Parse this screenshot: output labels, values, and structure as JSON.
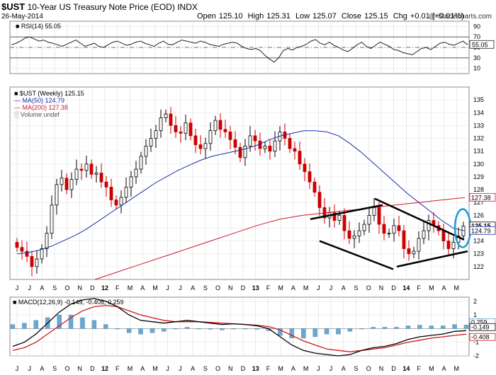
{
  "header": {
    "symbol": "$UST",
    "name": "10-Year US Treasury Note Price (EOD)",
    "exchange": "INDX",
    "date": "26-May-2014",
    "credit": "@ StockCharts.com",
    "open_label": "Open",
    "open": "125.10",
    "high_label": "High",
    "high": "125.31",
    "low_label": "Low",
    "low": "125.07",
    "close_label": "Close",
    "close": "125.15",
    "chg_label": "Chg",
    "chg": "+0.01 (+0.01%)"
  },
  "colors": {
    "ma50": "#1a2ea8",
    "ma200": "#cc1b2e",
    "macd": "#000000",
    "signal": "#d01818",
    "hist": "#6aa8cf",
    "annotation": "#1e9ad6"
  },
  "chart_data": [
    {
      "type": "line",
      "title": "RSI(14) 55.05",
      "ylim": [
        0,
        100
      ],
      "yticks": [
        90,
        70,
        50,
        30,
        10
      ],
      "reference_lines": [
        70,
        50,
        30
      ],
      "current_value": "55.05",
      "series": [
        {
          "name": "RSI(14)",
          "values": [
            55,
            58,
            62,
            68,
            70,
            66,
            62,
            64,
            60,
            58,
            55,
            52,
            56,
            60,
            64,
            58,
            52,
            55,
            58,
            52,
            50,
            55,
            60,
            62,
            58,
            54,
            56,
            60,
            62,
            58,
            55,
            52,
            58,
            62,
            56,
            55,
            60,
            64,
            62,
            60,
            58,
            62,
            60,
            56,
            54,
            52,
            56,
            58,
            60,
            58,
            52,
            48,
            46,
            48,
            44,
            35,
            28,
            22,
            30,
            44,
            48,
            45,
            50,
            52,
            56,
            62,
            65,
            58,
            55,
            60,
            54,
            50,
            45,
            42,
            48,
            55,
            60,
            52,
            48,
            54,
            60,
            56,
            52,
            46,
            44,
            40,
            38,
            36,
            42,
            48,
            50,
            46,
            52,
            58,
            60,
            56,
            54,
            58,
            62,
            55
          ]
        }
      ]
    },
    {
      "type": "candlestick",
      "title": "$UST (Weekly) 125.15",
      "legend": [
        "$UST (Weekly) 125.15",
        "MA(50) 124.79",
        "MA(200) 127.38",
        "Volume undef"
      ],
      "ylim": [
        121,
        136
      ],
      "yticks": [
        135,
        134,
        133,
        132,
        131,
        130,
        129,
        128,
        127,
        126,
        125,
        124,
        123,
        122
      ],
      "x_tick_labels": [
        "J",
        "J",
        "A",
        "S",
        "O",
        "N",
        "D",
        "12",
        "F",
        "M",
        "A",
        "M",
        "J",
        "J",
        "A",
        "S",
        "O",
        "N",
        "D",
        "13",
        "F",
        "M",
        "A",
        "M",
        "J",
        "J",
        "A",
        "S",
        "O",
        "N",
        "D",
        "14",
        "F",
        "M",
        "A",
        "M"
      ],
      "price_tags": [
        "127.38",
        "125.15",
        "124.79"
      ],
      "series": [
        {
          "name": "$UST (Weekly)",
          "values": [
            123.5,
            123.2,
            122.8,
            122.0,
            122.6,
            123.4,
            124.6,
            126.8,
            128.4,
            128.9,
            128.0,
            128.8,
            129.6,
            129.5,
            130.0,
            129.2,
            129.3,
            128.6,
            128.2,
            127.2,
            126.8,
            127.4,
            128.2,
            129.0,
            129.6,
            130.6,
            131.4,
            132.0,
            132.6,
            133.6,
            133.9,
            133.0,
            132.5,
            132.4,
            133.2,
            132.2,
            131.5,
            131.2,
            131.6,
            132.6,
            133.4,
            132.7,
            132.5,
            131.9,
            131.3,
            130.5,
            131.4,
            132.2,
            131.8,
            131.2,
            131.4,
            131.0,
            131.8,
            132.5,
            132.0,
            131.2,
            131.0,
            130.0,
            129.4,
            128.6,
            127.8,
            126.6,
            125.8,
            126.2,
            125.6,
            126.0,
            124.8,
            124.2,
            124.4,
            124.8,
            125.3,
            126.0,
            126.6,
            125.3,
            124.6,
            124.6,
            125.2,
            124.8,
            123.4,
            123.0,
            123.2,
            124.2,
            124.8,
            125.6,
            125.2,
            124.8,
            124.0,
            123.4,
            123.9,
            124.4,
            125.15
          ]
        },
        {
          "name": "MA(50)",
          "values": [
            123.0,
            123.1,
            123.3,
            123.6,
            124.0,
            124.4,
            124.9,
            125.5,
            126.1,
            126.7,
            127.3,
            127.9,
            128.5,
            129.0,
            129.5,
            129.9,
            130.3,
            130.6,
            130.8,
            131.0,
            131.2,
            131.5,
            131.9,
            132.2,
            132.4,
            132.6,
            132.6,
            132.5,
            132.2,
            131.6,
            130.9,
            130.1,
            129.3,
            128.5,
            127.7,
            127.0,
            126.3,
            125.6,
            125.0,
            124.79
          ]
        },
        {
          "name": "MA(200)",
          "values": [
            121.0,
            121.6,
            122.2,
            122.8,
            123.4,
            124.0,
            124.6,
            125.2,
            125.7,
            126.0,
            126.2,
            126.4,
            126.6,
            126.8,
            127.0,
            127.2,
            127.38
          ]
        }
      ],
      "annotations": [
        "descending channel (black trendlines)",
        "blue ellipse at latest candles"
      ]
    },
    {
      "type": "line+histogram",
      "title": "MACD(12,26,9) -0.149, -0.408, 0.259",
      "ylim": [
        -2,
        2.3
      ],
      "yticks": [
        2,
        1,
        0,
        -1,
        -2
      ],
      "price_tags": [
        "0.259",
        "-0.149",
        "-0.408"
      ],
      "series": [
        {
          "name": "MACD(12,26,9)",
          "values": [
            -1.3,
            -1.0,
            -0.4,
            0.4,
            1.2,
            1.8,
            2.1,
            2.2,
            2.0,
            1.6,
            1.0,
            0.6,
            0.5,
            0.4,
            0.5,
            0.6,
            0.5,
            0.4,
            0.3,
            0.35,
            0.3,
            0.2,
            0.0,
            -0.6,
            -1.2,
            -1.6,
            -1.8,
            -1.9,
            -2.0,
            -1.9,
            -1.6,
            -1.4,
            -1.3,
            -1.1,
            -0.8,
            -0.6,
            -0.5,
            -0.4,
            -0.2,
            -0.149
          ]
        },
        {
          "name": "Signal",
          "values": [
            -1.6,
            -1.4,
            -1.0,
            -0.4,
            0.2,
            0.8,
            1.3,
            1.6,
            1.7,
            1.6,
            1.3,
            1.0,
            0.8,
            0.6,
            0.5,
            0.5,
            0.5,
            0.45,
            0.4,
            0.35,
            0.3,
            0.25,
            0.15,
            -0.1,
            -0.5,
            -0.9,
            -1.2,
            -1.5,
            -1.6,
            -1.7,
            -1.6,
            -1.5,
            -1.4,
            -1.2,
            -1.0,
            -0.85,
            -0.7,
            -0.6,
            -0.5,
            -0.408
          ]
        },
        {
          "name": "Histogram",
          "values": [
            0.3,
            0.4,
            0.6,
            0.8,
            1.0,
            1.0,
            0.8,
            0.6,
            0.3,
            0.0,
            -0.3,
            -0.4,
            -0.3,
            -0.2,
            0.0,
            0.1,
            0.0,
            -0.05,
            -0.1,
            0.0,
            0.0,
            -0.05,
            -0.15,
            -0.5,
            -0.7,
            -0.7,
            -0.6,
            -0.4,
            -0.4,
            -0.2,
            0.0,
            0.1,
            0.1,
            0.1,
            0.2,
            0.25,
            0.2,
            0.2,
            0.3,
            0.259
          ]
        }
      ]
    }
  ]
}
